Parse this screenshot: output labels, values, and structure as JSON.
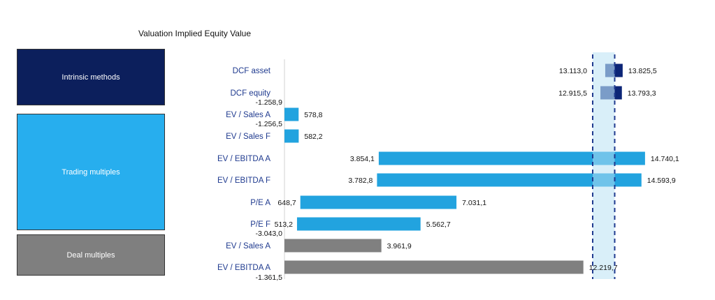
{
  "title": "Valuation Implied Equity Value",
  "groups": [
    {
      "label": "Intrinsic methods",
      "color": "#0c1f5c",
      "rows": [
        0,
        1
      ]
    },
    {
      "label": "Trading multiples",
      "color": "#27aeee",
      "rows": [
        2,
        3,
        4,
        5,
        6,
        7
      ]
    },
    {
      "label": "Deal multiples",
      "color": "#7f7f7f",
      "rows": [
        8,
        9
      ]
    }
  ],
  "chart_data": {
    "type": "bar",
    "subtype": "floating-range",
    "title": "Valuation Implied Equity Value",
    "xlabel": "",
    "ylabel": "",
    "grid": false,
    "categories": [
      "DCF asset",
      "DCF equity",
      "EV / Sales A",
      "EV / Sales F",
      "EV / EBITDA A",
      "EV / EBITDA F",
      "P/E  A",
      "P/E  F",
      "EV / Sales A",
      "EV / EBITDA A"
    ],
    "series": [
      {
        "name": "low",
        "values": [
          13113.0,
          12915.5,
          -1258.9,
          -1256.5,
          3854.1,
          3782.8,
          648.7,
          513.2,
          -3043.0,
          -1361.5
        ]
      },
      {
        "name": "high",
        "values": [
          13825.5,
          13793.3,
          578.8,
          582.2,
          14740.1,
          14593.9,
          7031.1,
          5562.7,
          3961.9,
          12219.7
        ]
      }
    ],
    "low_labels": [
      "13.113,0",
      "12.915,5",
      "-1.258,9",
      "-1.256,5",
      "3.854,1",
      "3.782,8",
      "648,7",
      "513,2",
      "-3.043,0",
      "-1.361,5"
    ],
    "high_labels": [
      "13.825,5",
      "13.793,3",
      "578,8",
      "582,2",
      "14.740,1",
      "14.593,9",
      "7.031,1",
      "5.562,7",
      "3.961,9",
      "12.219,7"
    ],
    "bar_colors": [
      "#7a9cc8",
      "#7a9cc8",
      "#22a3df",
      "#22a3df",
      "#22a3df",
      "#22a3df",
      "#22a3df",
      "#22a3df",
      "#808080",
      "#808080"
    ],
    "dcf_dark_color": "#0c2577",
    "selected_range": {
      "low": 12600,
      "high": 13500,
      "color": "#d9eff9",
      "line_color": "#1f3a8f"
    },
    "xlim": [
      0,
      16000
    ]
  }
}
